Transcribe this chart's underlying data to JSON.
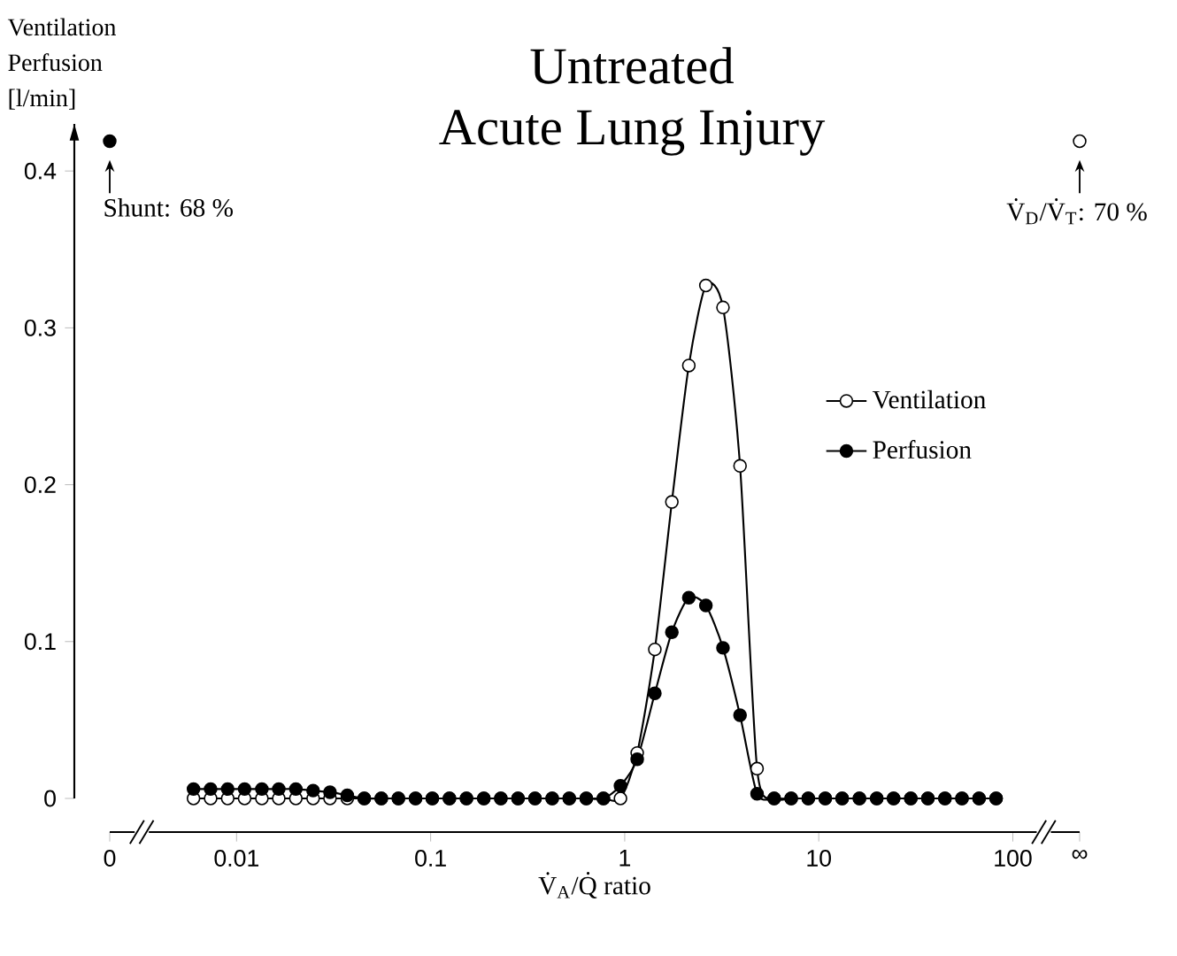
{
  "chart_data": {
    "type": "line",
    "title": "Untreated",
    "subtitle": "Acute Lung Injury",
    "xlabel": "V̇$_{A}$/Q̇ ratio",
    "ylabel": "Ventilation Perfusion [l/min]",
    "log": "x",
    "marker": "circle",
    "legend": "right",
    "xlim": [
      0.00222,
      221
    ],
    "ylim": [
      0,
      0.43
    ],
    "xticks": [
      {
        "value": 0.00222,
        "label": "0"
      },
      0.01,
      0.1,
      1,
      10,
      100,
      {
        "value": 221,
        "label": "∞"
      }
    ],
    "yticks": [
      0,
      0.1,
      0.2,
      0.3,
      0.4
    ],
    "x": [
      0.006,
      0.00735,
      0.009,
      0.011,
      0.0135,
      0.0165,
      0.0202,
      0.0248,
      0.0303,
      0.0372,
      0.0455,
      0.0557,
      0.0682,
      0.0836,
      0.102,
      0.125,
      0.153,
      0.188,
      0.23,
      0.282,
      0.345,
      0.423,
      0.518,
      0.634,
      0.777,
      0.951,
      1.16,
      1.43,
      1.75,
      2.14,
      2.62,
      3.21,
      3.93,
      4.81,
      5.89,
      7.21,
      8.83,
      10.8,
      13.2,
      16.2,
      19.9,
      24.3,
      29.8,
      36.5,
      44.7,
      54.7,
      67.0,
      82.0
    ],
    "series": [
      {
        "name": "Ventilation",
        "color": "#ffffff",
        "values": [
          0,
          0,
          0,
          0,
          0,
          0,
          0,
          0,
          0,
          0,
          0,
          0,
          0,
          0,
          0,
          0,
          0,
          0,
          0,
          0,
          0,
          0,
          0,
          0,
          0,
          0,
          0.029,
          0.095,
          0.189,
          0.276,
          0.327,
          0.313,
          0.212,
          0.019,
          0,
          0,
          0,
          0,
          0,
          0,
          0,
          0,
          0,
          0,
          0,
          0,
          0,
          0
        ]
      },
      {
        "name": "Perfusion",
        "color": "#000000",
        "values": [
          0.006,
          0.006,
          0.006,
          0.006,
          0.006,
          0.006,
          0.006,
          0.005,
          0.004,
          0.002,
          0,
          0,
          0,
          0,
          0,
          0,
          0,
          0,
          0,
          0,
          0,
          0,
          0,
          0,
          0,
          0.008,
          0.025,
          0.067,
          0.106,
          0.128,
          0.123,
          0.096,
          0.053,
          0.003,
          0,
          0,
          0,
          0,
          0,
          0,
          0,
          0,
          0,
          0,
          0,
          0,
          0,
          0
        ]
      },
      {
        "type": "scatter",
        "color": "#000000",
        "x": [
          0.00222
        ],
        "values": [
          0.419
        ]
      },
      {
        "type": "scatter",
        "color": "#ffffff",
        "x": [
          221
        ],
        "values": [
          0.419
        ]
      }
    ],
    "annotations": [
      {
        "text": "Shunt: 68 %",
        "x": 0.00222,
        "y": 0.419
      },
      {
        "text": "V̇$_{D}$/V̇$_{T}$: 70 %",
        "x": 221,
        "y": 0.419
      }
    ]
  }
}
